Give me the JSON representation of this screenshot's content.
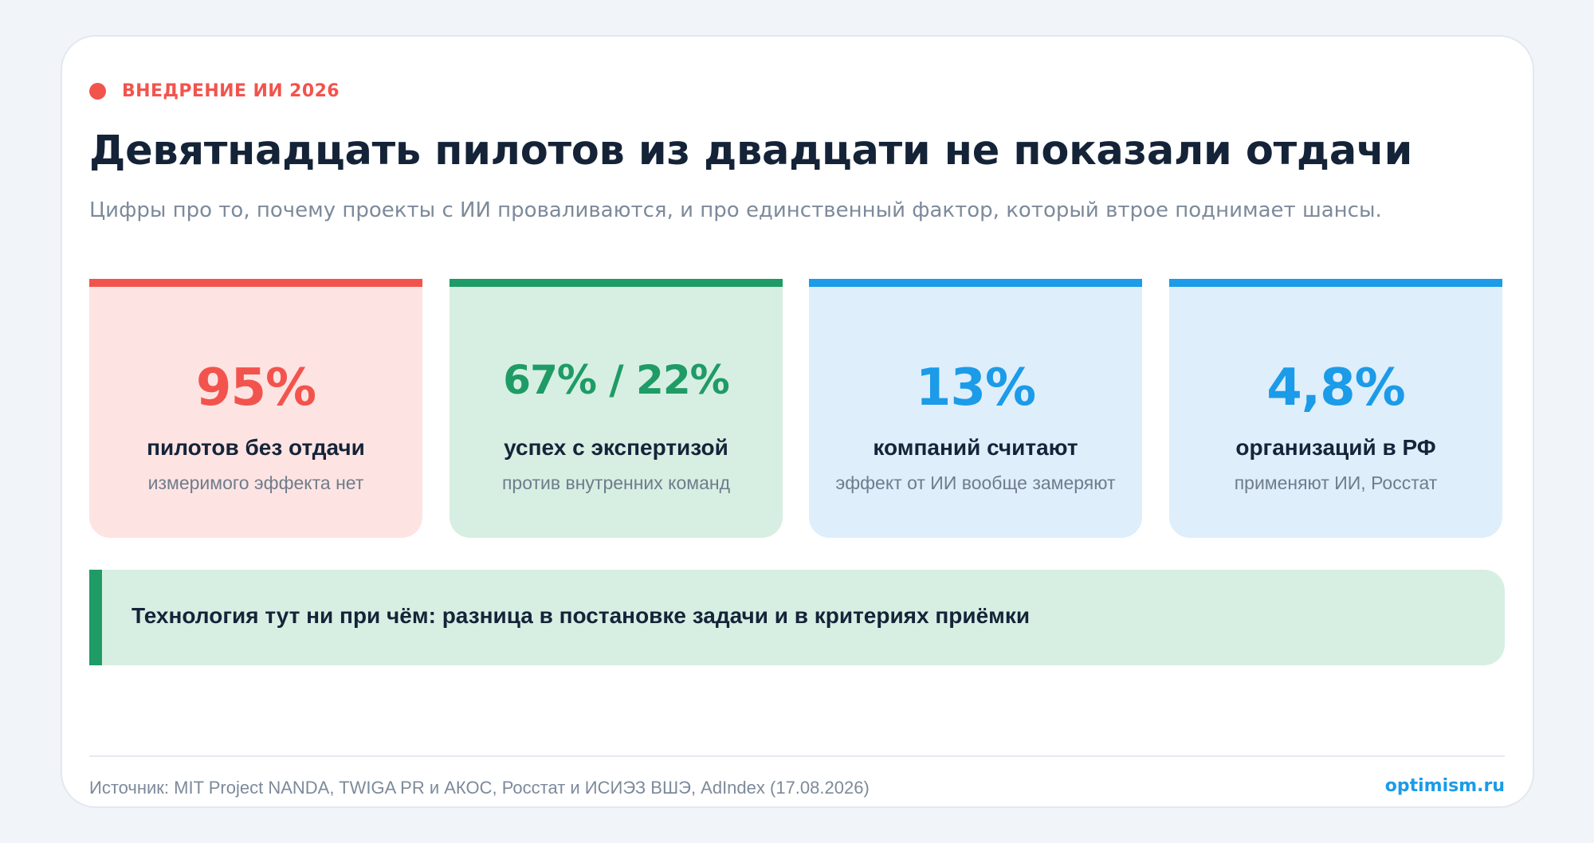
{
  "kicker": "ВНЕДРЕНИЕ ИИ 2026",
  "title": "Девятнадцать пилотов из двадцати не показали отдачи",
  "subtitle": "Цифры про то, почему проекты с ИИ проваливаются, и про единственный фактор, который втрое поднимает шансы.",
  "stats": [
    {
      "value": "95%",
      "label": "пилотов без отдачи",
      "sublabel": "измеримого эффекта нет",
      "accent": "#f2544d",
      "background": "#fde4e2"
    },
    {
      "value": "67% / 22%",
      "label": "успех с экспертизой",
      "sublabel": "против внутренних команд",
      "accent": "#1f9b66",
      "background": "#d6efe2"
    },
    {
      "value": "13%",
      "label": "компаний считают",
      "sublabel": "эффект от ИИ вообще замеряют",
      "accent": "#1b9be8",
      "background": "#deeefb"
    },
    {
      "value": "4,8%",
      "label": "организаций в РФ",
      "sublabel": "применяют ИИ, Росстат",
      "accent": "#1b9be8",
      "background": "#deeefb"
    }
  ],
  "callout": "Технология тут ни при чём: разница в постановке задачи и в критериях приёмки",
  "footer": {
    "source": "Источник: MIT Project NANDA, TWIGA PR и АКОС, Росстат и ИСИЭЗ ВШЭ, AdIndex (17.08.2026)",
    "brand": "optimism.ru"
  }
}
